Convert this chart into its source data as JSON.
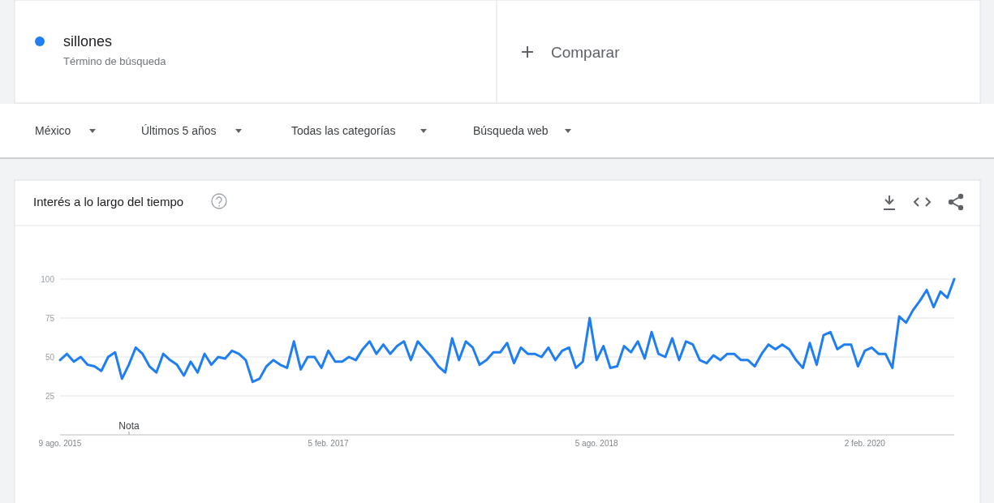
{
  "chart_data": {
    "type": "line",
    "title": "Interés a lo largo del tiempo",
    "x": [
      "2015-08-09",
      "2015-08-23",
      "2015-09-06",
      "2015-09-20",
      "2015-10-04",
      "2015-10-18",
      "2015-11-01",
      "2015-11-15",
      "2015-11-29",
      "2015-12-13",
      "2015-12-27",
      "2016-01-10",
      "2016-01-24",
      "2016-02-07",
      "2016-02-21",
      "2016-03-06",
      "2016-03-20",
      "2016-04-03",
      "2016-04-17",
      "2016-05-01",
      "2016-05-15",
      "2016-05-29",
      "2016-06-12",
      "2016-06-26",
      "2016-07-10",
      "2016-07-24",
      "2016-08-07",
      "2016-08-21",
      "2016-09-04",
      "2016-09-18",
      "2016-10-02",
      "2016-10-16",
      "2016-10-30",
      "2016-11-13",
      "2016-11-27",
      "2016-12-11",
      "2016-12-25",
      "2017-01-08",
      "2017-01-22",
      "2017-02-05",
      "2017-02-19",
      "2017-03-05",
      "2017-03-19",
      "2017-04-02",
      "2017-04-16",
      "2017-04-30",
      "2017-05-14",
      "2017-05-28",
      "2017-06-11",
      "2017-06-25",
      "2017-07-09",
      "2017-07-23",
      "2017-08-06",
      "2017-08-20",
      "2017-09-03",
      "2017-09-17",
      "2017-10-01",
      "2017-10-15",
      "2017-10-29",
      "2017-11-12",
      "2017-11-26",
      "2017-12-10",
      "2017-12-24",
      "2018-01-07",
      "2018-01-21",
      "2018-02-04",
      "2018-02-18",
      "2018-03-04",
      "2018-03-18",
      "2018-04-01",
      "2018-04-15",
      "2018-04-29",
      "2018-05-13",
      "2018-05-27",
      "2018-06-10",
      "2018-06-24",
      "2018-07-08",
      "2018-07-22",
      "2018-08-05",
      "2018-08-19",
      "2018-09-02",
      "2018-09-16",
      "2018-09-30",
      "2018-10-14",
      "2018-10-28",
      "2018-11-11",
      "2018-11-25",
      "2018-12-09",
      "2018-12-23",
      "2019-01-06",
      "2019-01-20",
      "2019-02-03",
      "2019-02-17",
      "2019-03-03",
      "2019-03-17",
      "2019-03-31",
      "2019-04-14",
      "2019-04-28",
      "2019-05-12",
      "2019-05-26",
      "2019-06-09",
      "2019-06-23",
      "2019-07-07",
      "2019-07-21",
      "2019-08-04",
      "2019-08-18",
      "2019-09-01",
      "2019-09-15",
      "2019-09-29",
      "2019-10-13",
      "2019-10-27",
      "2019-11-10",
      "2019-11-24",
      "2019-12-08",
      "2019-12-22",
      "2020-01-05",
      "2020-01-19",
      "2020-02-02",
      "2020-02-16",
      "2020-03-01",
      "2020-03-15",
      "2020-03-29",
      "2020-04-12",
      "2020-04-26",
      "2020-05-10",
      "2020-05-24",
      "2020-06-07",
      "2020-06-21",
      "2020-07-05",
      "2020-07-19",
      "2020-08-02"
    ],
    "series": [
      {
        "name": "sillones",
        "color": "#1f7ef2",
        "values": [
          48,
          52,
          47,
          50,
          45,
          44,
          41,
          50,
          53,
          36,
          45,
          56,
          52,
          44,
          40,
          52,
          48,
          45,
          38,
          47,
          40,
          52,
          45,
          50,
          49,
          54,
          52,
          48,
          34,
          36,
          44,
          48,
          45,
          43,
          60,
          42,
          50,
          50,
          43,
          54,
          47,
          47,
          50,
          48,
          55,
          60,
          52,
          58,
          52,
          57,
          60,
          48,
          60,
          55,
          50,
          44,
          40,
          62,
          48,
          60,
          56,
          45,
          48,
          53,
          53,
          59,
          46,
          56,
          52,
          52,
          50,
          56,
          48,
          54,
          56,
          43,
          47,
          75,
          48,
          57,
          43,
          44,
          57,
          53,
          60,
          49,
          66,
          52,
          50,
          62,
          48,
          60,
          58,
          48,
          46,
          51,
          48,
          52,
          52,
          48,
          48,
          44,
          52,
          58,
          55,
          58,
          55,
          48,
          43,
          59,
          45,
          64,
          66,
          55,
          58,
          58,
          44,
          54,
          56,
          52,
          52,
          43,
          76,
          72,
          80,
          86,
          93,
          82,
          92,
          88,
          100
        ]
      }
    ],
    "xlim": [
      "2015-08-09",
      "2020-08-02"
    ],
    "xticks": [
      {
        "value": "2015-08-09",
        "label": "9 ago. 2015"
      },
      {
        "value": "2017-02-05",
        "label": "5 feb. 2017"
      },
      {
        "value": "2018-08-05",
        "label": "5 ago. 2018"
      },
      {
        "value": "2020-02-02",
        "label": "2 feb. 2020"
      }
    ],
    "ylim": [
      0,
      100
    ],
    "yticks": [
      25,
      50,
      75,
      100
    ],
    "grid": "y",
    "legend": "top left",
    "line_style": "solid",
    "marker": "none",
    "annotations": [
      "Nota",
      "Término de búsqueda",
      "Comparar",
      "México",
      "Últimos 5 años",
      "Todas las categorías",
      "Búsqueda web"
    ]
  }
}
